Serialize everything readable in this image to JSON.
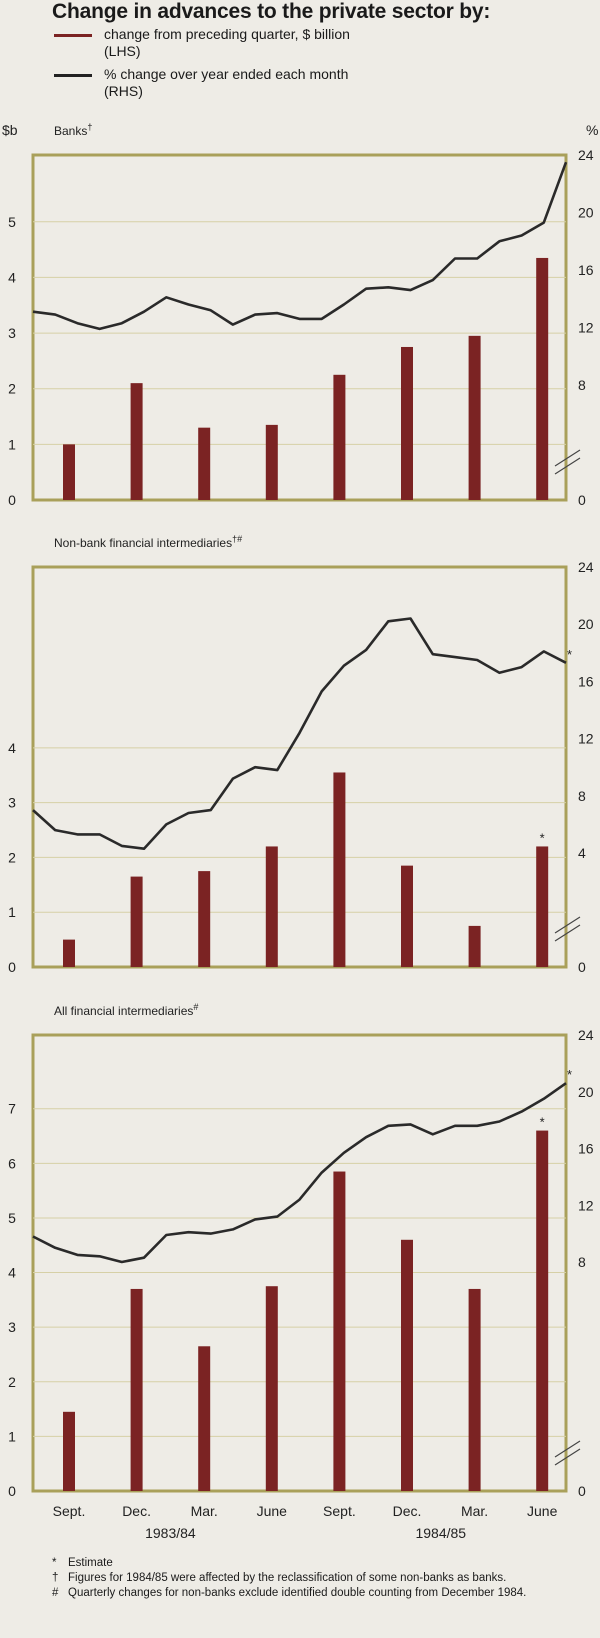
{
  "title": "Change in advances to the private sector by:",
  "legend": [
    {
      "swatch_color": "#7b2323",
      "line1": "change from preceding quarter, $ billion",
      "line2": "(LHS)"
    },
    {
      "swatch_color": "#222222",
      "line1": "% change over year ended each month",
      "line2": "(RHS)"
    }
  ],
  "colors": {
    "frame": "#a9a05a",
    "grid": "#d6d0a6",
    "bar": "#7b2323",
    "line": "#2a2a2a",
    "background": "#eeece6"
  },
  "chart_data": [
    {
      "type": "bar",
      "title": "Banks",
      "title_mark": "†",
      "left_unit": "$b",
      "right_unit": "%",
      "lhs_ticks": [
        "0",
        "1",
        "2",
        "3",
        "4",
        "5"
      ],
      "rhs_ticks": [
        "0",
        "8",
        "12",
        "16",
        "20",
        "24"
      ],
      "categories": [
        "Sept.",
        "Dec.",
        "Mar.",
        "June",
        "Sept.",
        "Dec.",
        "Mar.",
        "June"
      ],
      "values": [
        1.0,
        2.1,
        1.3,
        1.35,
        2.25,
        2.75,
        2.95,
        4.35
      ],
      "bar_marks": [
        "",
        "",
        "",
        "",
        "",
        "",
        "",
        ""
      ],
      "line_values": [
        13.1,
        12.9,
        12.3,
        11.9,
        12.3,
        13.1,
        14.1,
        13.6,
        13.2,
        12.2,
        12.9,
        13.0,
        12.6,
        12.6,
        13.6,
        14.7,
        14.8,
        14.6,
        15.3,
        16.8,
        16.8,
        18.0,
        18.4,
        19.3,
        23.5
      ],
      "line_end_mark": ""
    },
    {
      "type": "bar",
      "title": "Non-bank financial intermediaries",
      "title_mark": "†#",
      "left_unit": "",
      "right_unit": "",
      "lhs_ticks": [
        "0",
        "1",
        "2",
        "3",
        "4"
      ],
      "rhs_ticks": [
        "0",
        "4",
        "8",
        "12",
        "16",
        "20",
        "24"
      ],
      "categories": [
        "Sept.",
        "Dec.",
        "Mar.",
        "June",
        "Sept.",
        "Dec.",
        "Mar.",
        "June"
      ],
      "values": [
        0.5,
        1.65,
        1.75,
        2.2,
        3.55,
        1.85,
        0.75,
        2.2
      ],
      "bar_marks": [
        "",
        "",
        "",
        "",
        "",
        "",
        "",
        "*"
      ],
      "line_values": [
        7.0,
        5.6,
        5.3,
        5.3,
        4.5,
        4.3,
        6.0,
        6.8,
        7.0,
        9.2,
        10.0,
        9.8,
        12.4,
        15.3,
        17.1,
        18.2,
        20.2,
        20.4,
        17.9,
        17.7,
        17.5,
        16.6,
        17.0,
        18.1,
        17.3
      ],
      "line_end_mark": "*"
    },
    {
      "type": "bar",
      "title": "All financial intermediaries",
      "title_mark": "#",
      "left_unit": "",
      "right_unit": "",
      "lhs_ticks": [
        "0",
        "1",
        "2",
        "3",
        "4",
        "5",
        "6",
        "7"
      ],
      "rhs_ticks": [
        "0",
        "8",
        "12",
        "16",
        "20",
        "24"
      ],
      "categories": [
        "Sept.",
        "Dec.",
        "Mar.",
        "June",
        "Sept.",
        "Dec.",
        "Mar.",
        "June"
      ],
      "values": [
        1.45,
        3.7,
        2.65,
        3.75,
        5.85,
        4.6,
        3.7,
        6.6
      ],
      "bar_marks": [
        "",
        "",
        "",
        "",
        "",
        "",
        "",
        "*"
      ],
      "line_values": [
        9.8,
        9.0,
        8.5,
        8.4,
        8.0,
        8.3,
        9.9,
        10.1,
        10.0,
        10.3,
        11.0,
        11.2,
        12.4,
        14.3,
        15.7,
        16.8,
        17.6,
        17.7,
        17.0,
        17.6,
        17.6,
        17.9,
        18.6,
        19.5,
        20.6
      ],
      "line_end_mark": "*"
    }
  ],
  "x_axis": {
    "categories": [
      "Sept.",
      "Dec.",
      "Mar.",
      "June",
      "Sept.",
      "Dec.",
      "Mar.",
      "June"
    ],
    "year_labels": [
      {
        "label": "1983/84",
        "center_index": 1.5
      },
      {
        "label": "1984/85",
        "center_index": 5.5
      }
    ]
  },
  "footnotes": [
    {
      "mark": "*",
      "text": "Estimate"
    },
    {
      "mark": "†",
      "text": "Figures for 1984/85 were affected by the reclassification of some non-banks as banks."
    },
    {
      "mark": "#",
      "text": "Quarterly changes for non-banks exclude identified double counting from December 1984."
    }
  ]
}
